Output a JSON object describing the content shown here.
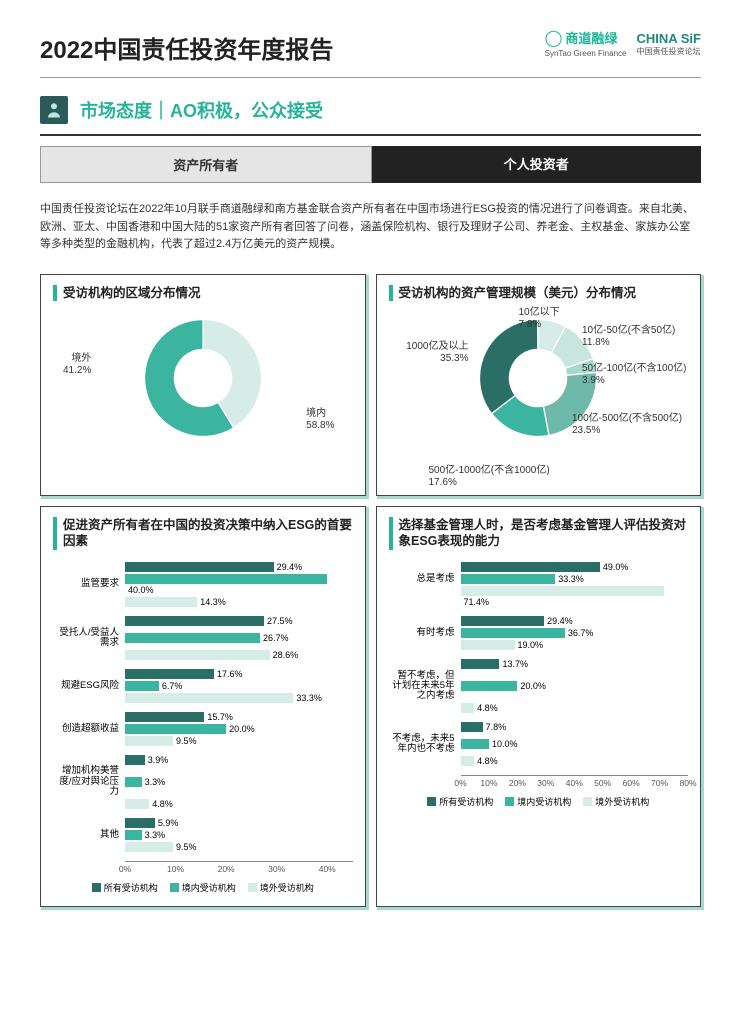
{
  "header": {
    "title": "2022中国责任投资年度报告",
    "logo1_brand": "商道融绿",
    "logo1_sub": "SynTao Green Finance",
    "logo2_brand": "CHINA SiF",
    "logo2_sub": "中国责任投资论坛"
  },
  "section": {
    "title": "市场态度｜AO积极，公众接受"
  },
  "tabs": {
    "left": "资产所有者",
    "right": "个人投资者"
  },
  "intro": "中国责任投资论坛在2022年10月联手商道融绿和南方基金联合资产所有者在中国市场进行ESG投资的情况进行了问卷调查。来自北美、欧洲、亚太、中国香港和中国大陆的51家资产所有者回答了问卷，涵盖保险机构、银行及理财子公司、养老金、主权基金、家族办公室等多种类型的金融机构，代表了超过2.4万亿美元的资产规模。",
  "colors": {
    "c1": "#2a6e66",
    "c2": "#3cb5a0",
    "c3": "#a6d9cd",
    "c4": "#d6ece6",
    "c5": "#6fb9aa",
    "stroke": "#ffffff"
  },
  "panel1": {
    "title": "受访机构的区域分布情况",
    "slices": [
      {
        "label": "境外",
        "value": 41.2,
        "text": "41.2%"
      },
      {
        "label": "境内",
        "value": 58.8,
        "text": "58.8%"
      }
    ]
  },
  "panel2": {
    "title": "受访机构的资产管理规模（美元）分布情况",
    "slices": [
      {
        "label": "10亿以下",
        "value": 7.8,
        "text": "7.8%"
      },
      {
        "label": "10亿-50亿(不含50亿)",
        "value": 11.8,
        "text": "11.8%"
      },
      {
        "label": "50亿-100亿(不含100亿)",
        "value": 3.9,
        "text": "3.9%"
      },
      {
        "label": "100亿-500亿(不含500亿)",
        "value": 23.5,
        "text": "23.5%"
      },
      {
        "label": "500亿-1000亿(不含1000亿)",
        "value": 17.6,
        "text": "17.6%"
      },
      {
        "label": "1000亿及以上",
        "value": 35.3,
        "text": "35.3%"
      }
    ]
  },
  "panel3": {
    "title": "促进资产所有者在中国的投资决策中纳入ESG的首要因素",
    "xmax": 45,
    "ticks": [
      "0%",
      "10%",
      "20%",
      "30%",
      "40%"
    ],
    "series_labels": [
      "所有受访机构",
      "境内受访机构",
      "境外受访机构"
    ],
    "categories": [
      {
        "name": "监管要求",
        "vals": [
          29.4,
          40.0,
          14.3
        ]
      },
      {
        "name": "受托人/受益人需求",
        "vals": [
          27.5,
          26.7,
          28.6
        ]
      },
      {
        "name": "规避ESG风险",
        "vals": [
          17.6,
          6.7,
          33.3
        ]
      },
      {
        "name": "创造超额收益",
        "vals": [
          15.7,
          20.0,
          9.5
        ]
      },
      {
        "name": "增加机构美誉度/应对舆论压力",
        "vals": [
          3.9,
          3.3,
          4.8
        ]
      },
      {
        "name": "其他",
        "vals": [
          5.9,
          3.3,
          9.5
        ]
      }
    ]
  },
  "panel4": {
    "title": "选择基金管理人时，是否考虑基金管理人评估投资对象ESG表现的能力",
    "xmax": 80,
    "ticks": [
      "0%",
      "10%",
      "20%",
      "30%",
      "40%",
      "50%",
      "60%",
      "70%",
      "80%"
    ],
    "series_labels": [
      "所有受访机构",
      "境内受访机构",
      "境外受访机构"
    ],
    "categories": [
      {
        "name": "总是考虑",
        "vals": [
          49.0,
          33.3,
          71.4
        ]
      },
      {
        "name": "有时考虑",
        "vals": [
          29.4,
          36.7,
          19.0
        ]
      },
      {
        "name": "暂不考虑，但计划在未来5年之内考虑",
        "vals": [
          13.7,
          20.0,
          4.8
        ]
      },
      {
        "name": "不考虑，未来5年内也不考虑",
        "vals": [
          7.8,
          10.0,
          4.8
        ]
      }
    ]
  }
}
